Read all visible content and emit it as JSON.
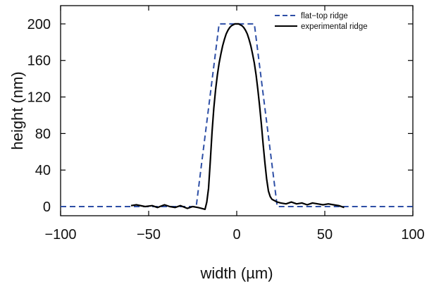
{
  "chart_data": {
    "type": "line",
    "title": "",
    "xlabel": "width (µm)",
    "ylabel": "height (nm)",
    "xlim": [
      -100,
      100
    ],
    "ylim": [
      -10,
      220
    ],
    "xticks": [
      -100,
      -50,
      0,
      50,
      100
    ],
    "xtick_labels": [
      "−100",
      "−50",
      "0",
      "50",
      "100"
    ],
    "yticks": [
      0,
      40,
      80,
      120,
      160,
      200
    ],
    "ytick_labels": [
      "0",
      "40",
      "80",
      "120",
      "160",
      "200"
    ],
    "grid": false,
    "legend_position": "top-right",
    "series": [
      {
        "name": "flat−top ridge",
        "color": "#2e4fa6",
        "style": "dashed",
        "x": [
          -100,
          -23,
          -10,
          10,
          23,
          100
        ],
        "y": [
          0,
          0,
          200,
          200,
          0,
          0
        ]
      },
      {
        "name": "experimental ridge",
        "color": "#000000",
        "style": "solid",
        "x": [
          -60,
          -57,
          -52,
          -48,
          -45,
          -41,
          -38,
          -35,
          -32,
          -28,
          -25,
          -22,
          -20,
          -18,
          -17,
          -16,
          -15,
          -14,
          -13,
          -12,
          -11,
          -10,
          -9,
          -8,
          -7,
          -6,
          -5,
          -4,
          -3,
          -2,
          -1,
          0,
          1,
          2,
          3,
          4,
          5,
          6,
          7,
          8,
          9,
          10,
          11,
          12,
          13,
          14,
          15,
          16,
          17,
          18,
          19,
          20,
          21,
          22,
          23,
          25,
          28,
          31,
          34,
          37,
          40,
          43,
          46,
          49,
          52,
          55,
          58,
          61
        ],
        "y": [
          1,
          2,
          0,
          1,
          -1,
          2,
          0,
          -1,
          1,
          -2,
          0,
          -1,
          -2,
          -3,
          5,
          20,
          50,
          82,
          108,
          128,
          144,
          157,
          167,
          176,
          183,
          189,
          193,
          196,
          198,
          199,
          200,
          200,
          200,
          199,
          198,
          196,
          193,
          189,
          183,
          176,
          167,
          157,
          144,
          128,
          110,
          90,
          68,
          48,
          30,
          17,
          11,
          8,
          7,
          6,
          5,
          4,
          3,
          5,
          3,
          4,
          2,
          4,
          3,
          2,
          3,
          2,
          1,
          -1
        ]
      }
    ]
  }
}
